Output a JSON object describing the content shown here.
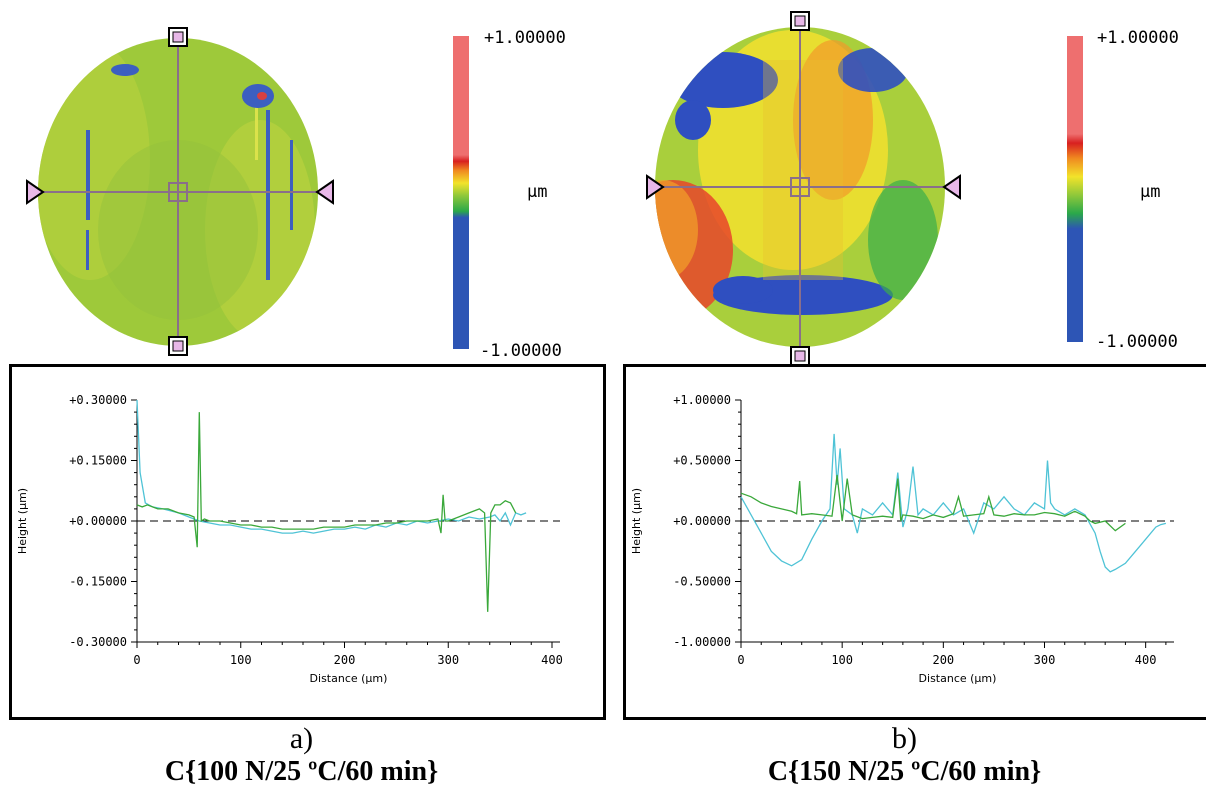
{
  "panels": [
    {
      "letter": "a)",
      "condition": "C{100 N/25 ºC/60 min}",
      "colorbar": {
        "max_label": "+1.00000",
        "min_label": "-1.00000",
        "unit": "µm"
      },
      "map_style": "mostly-green"
    },
    {
      "letter": "b)",
      "condition": "C{150 N/25 ºC/60 min}",
      "colorbar": {
        "max_label": "+1.00000",
        "min_label": "-1.00000",
        "unit": "µm"
      },
      "map_style": "mixed"
    }
  ],
  "chart_data": [
    {
      "type": "line",
      "xlabel": "Distance (µm)",
      "ylabel": "Height (µm)",
      "xlim": [
        0,
        400
      ],
      "ylim": [
        -0.3,
        0.3
      ],
      "x_ticks": [
        "0",
        "100",
        "200",
        "300",
        "400"
      ],
      "y_ticks": [
        "+0.30000",
        "+0.15000",
        "+0.00000",
        "-0.15000",
        "-0.30000"
      ],
      "zero_line": "dashed",
      "series": [
        {
          "color": "#4fc3d6",
          "x": [
            0,
            3,
            8,
            15,
            25,
            40,
            50,
            60,
            70,
            80,
            90,
            100,
            110,
            120,
            130,
            140,
            150,
            160,
            170,
            180,
            190,
            200,
            210,
            220,
            230,
            240,
            250,
            260,
            270,
            280,
            290,
            300,
            310,
            320,
            330,
            340,
            345,
            350,
            355,
            360,
            365,
            370,
            375
          ],
          "y": [
            0.3,
            0.12,
            0.045,
            0.035,
            0.03,
            0.02,
            0.01,
            0.0,
            -0.005,
            -0.01,
            -0.01,
            -0.015,
            -0.02,
            -0.02,
            -0.025,
            -0.03,
            -0.03,
            -0.025,
            -0.03,
            -0.025,
            -0.02,
            -0.02,
            -0.015,
            -0.02,
            -0.01,
            -0.015,
            -0.005,
            -0.01,
            0.0,
            -0.005,
            0.0,
            0.005,
            0.0,
            0.01,
            0.005,
            0.01,
            0.015,
            0.0,
            0.02,
            -0.01,
            0.02,
            0.015,
            0.02
          ]
        },
        {
          "color": "#3aa83a",
          "x": [
            0,
            5,
            10,
            20,
            30,
            40,
            50,
            55,
            58,
            60,
            62,
            65,
            70,
            80,
            90,
            100,
            110,
            120,
            130,
            140,
            150,
            160,
            170,
            180,
            190,
            200,
            210,
            220,
            230,
            240,
            250,
            260,
            270,
            280,
            290,
            293,
            295,
            297,
            300,
            310,
            320,
            330,
            335,
            338,
            341,
            345,
            350,
            355,
            360,
            365
          ],
          "y": [
            0.04,
            0.035,
            0.04,
            0.03,
            0.03,
            0.02,
            0.015,
            0.01,
            -0.065,
            0.27,
            0.0,
            0.005,
            0.0,
            0.0,
            -0.005,
            -0.01,
            -0.01,
            -0.015,
            -0.015,
            -0.02,
            -0.02,
            -0.02,
            -0.02,
            -0.015,
            -0.015,
            -0.015,
            -0.01,
            -0.01,
            -0.01,
            -0.005,
            -0.005,
            0.0,
            0.0,
            0.0,
            0.005,
            -0.03,
            0.065,
            0.0,
            0.0,
            0.01,
            0.02,
            0.03,
            0.02,
            -0.225,
            0.02,
            0.04,
            0.04,
            0.05,
            0.045,
            0.02
          ]
        }
      ]
    },
    {
      "type": "line",
      "xlabel": "Distance (µm)",
      "ylabel": "Height (µm)",
      "xlim": [
        0,
        430
      ],
      "ylim": [
        -1.0,
        1.0
      ],
      "x_ticks": [
        "0",
        "100",
        "200",
        "300",
        "400"
      ],
      "y_ticks": [
        "+1.00000",
        "+0.50000",
        "+0.00000",
        "-0.50000",
        "-1.00000"
      ],
      "zero_line": "dashed",
      "series": [
        {
          "color": "#4fc3d6",
          "x": [
            0,
            10,
            20,
            30,
            40,
            50,
            60,
            70,
            80,
            88,
            92,
            95,
            98,
            102,
            110,
            115,
            120,
            130,
            140,
            150,
            155,
            160,
            165,
            170,
            175,
            180,
            190,
            200,
            210,
            220,
            230,
            240,
            250,
            260,
            270,
            280,
            290,
            300,
            303,
            306,
            310,
            320,
            330,
            340,
            350,
            355,
            360,
            365,
            370,
            380,
            390,
            400,
            410,
            415,
            420
          ],
          "y": [
            0.2,
            0.05,
            -0.1,
            -0.25,
            -0.33,
            -0.37,
            -0.32,
            -0.15,
            0.0,
            0.1,
            0.72,
            0.3,
            0.6,
            0.1,
            0.05,
            -0.1,
            0.1,
            0.05,
            0.15,
            0.05,
            0.4,
            -0.05,
            0.1,
            0.45,
            0.05,
            0.1,
            0.05,
            0.15,
            0.05,
            0.1,
            -0.1,
            0.15,
            0.1,
            0.2,
            0.1,
            0.05,
            0.15,
            0.1,
            0.5,
            0.15,
            0.1,
            0.05,
            0.1,
            0.05,
            -0.1,
            -0.25,
            -0.38,
            -0.42,
            -0.4,
            -0.35,
            -0.25,
            -0.15,
            -0.05,
            -0.03,
            -0.02
          ]
        },
        {
          "color": "#3aa83a",
          "x": [
            0,
            10,
            20,
            30,
            40,
            50,
            55,
            58,
            60,
            70,
            80,
            90,
            95,
            100,
            105,
            110,
            120,
            130,
            140,
            150,
            155,
            158,
            160,
            170,
            180,
            190,
            200,
            210,
            215,
            220,
            230,
            240,
            245,
            250,
            260,
            270,
            280,
            290,
            300,
            310,
            320,
            330,
            340,
            345,
            350,
            360,
            370,
            380
          ],
          "y": [
            0.23,
            0.2,
            0.15,
            0.12,
            0.1,
            0.08,
            0.06,
            0.33,
            0.05,
            0.06,
            0.05,
            0.04,
            0.38,
            0.0,
            0.35,
            0.05,
            0.02,
            0.03,
            0.04,
            0.03,
            0.35,
            0.0,
            0.05,
            0.04,
            0.02,
            0.05,
            0.03,
            0.06,
            0.2,
            0.04,
            0.05,
            0.06,
            0.2,
            0.05,
            0.04,
            0.06,
            0.05,
            0.05,
            0.07,
            0.06,
            0.04,
            0.08,
            0.04,
            0.0,
            -0.02,
            0.0,
            -0.08,
            -0.02
          ]
        }
      ]
    }
  ]
}
